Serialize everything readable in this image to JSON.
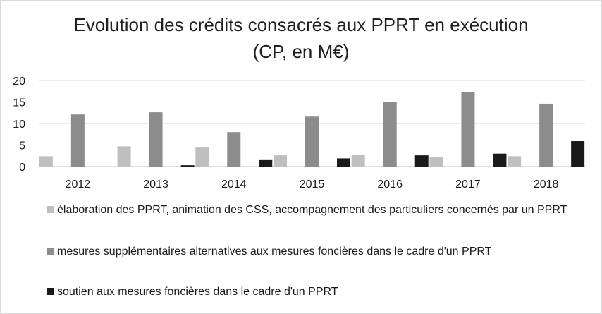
{
  "chart_data": {
    "type": "bar",
    "title_line1": "Evolution des crédits consacrés aux PPRT en exécution",
    "title_line2": "(CP, en M€)",
    "categories": [
      "2012",
      "2013",
      "2014",
      "2015",
      "2016",
      "2017",
      "2018"
    ],
    "ylim": [
      0,
      20
    ],
    "yticks": [
      "0",
      "5",
      "10",
      "15",
      "20"
    ],
    "grid": true,
    "legend_position": "bottom",
    "series": [
      {
        "name": "élaboration des PPRT, animation des CSS, accompagnement des particuliers concernés par un PPRT",
        "color": "#bfbfbf",
        "values": [
          2.4,
          4.7,
          4.4,
          2.6,
          2.8,
          2.2,
          2.4
        ]
      },
      {
        "name": "mesures supplémentaires alternatives aux mesures foncières dans le cadre d'un PPRT",
        "color": "#8c8c8c",
        "values": [
          12.1,
          12.6,
          8.0,
          11.6,
          15.0,
          17.3,
          14.6
        ]
      },
      {
        "name": "soutien aux mesures foncières dans le cadre d'un PPRT",
        "color": "#1a1a1a",
        "values": [
          0.0,
          0.3,
          1.5,
          1.9,
          2.6,
          3.0,
          5.9
        ]
      }
    ]
  }
}
